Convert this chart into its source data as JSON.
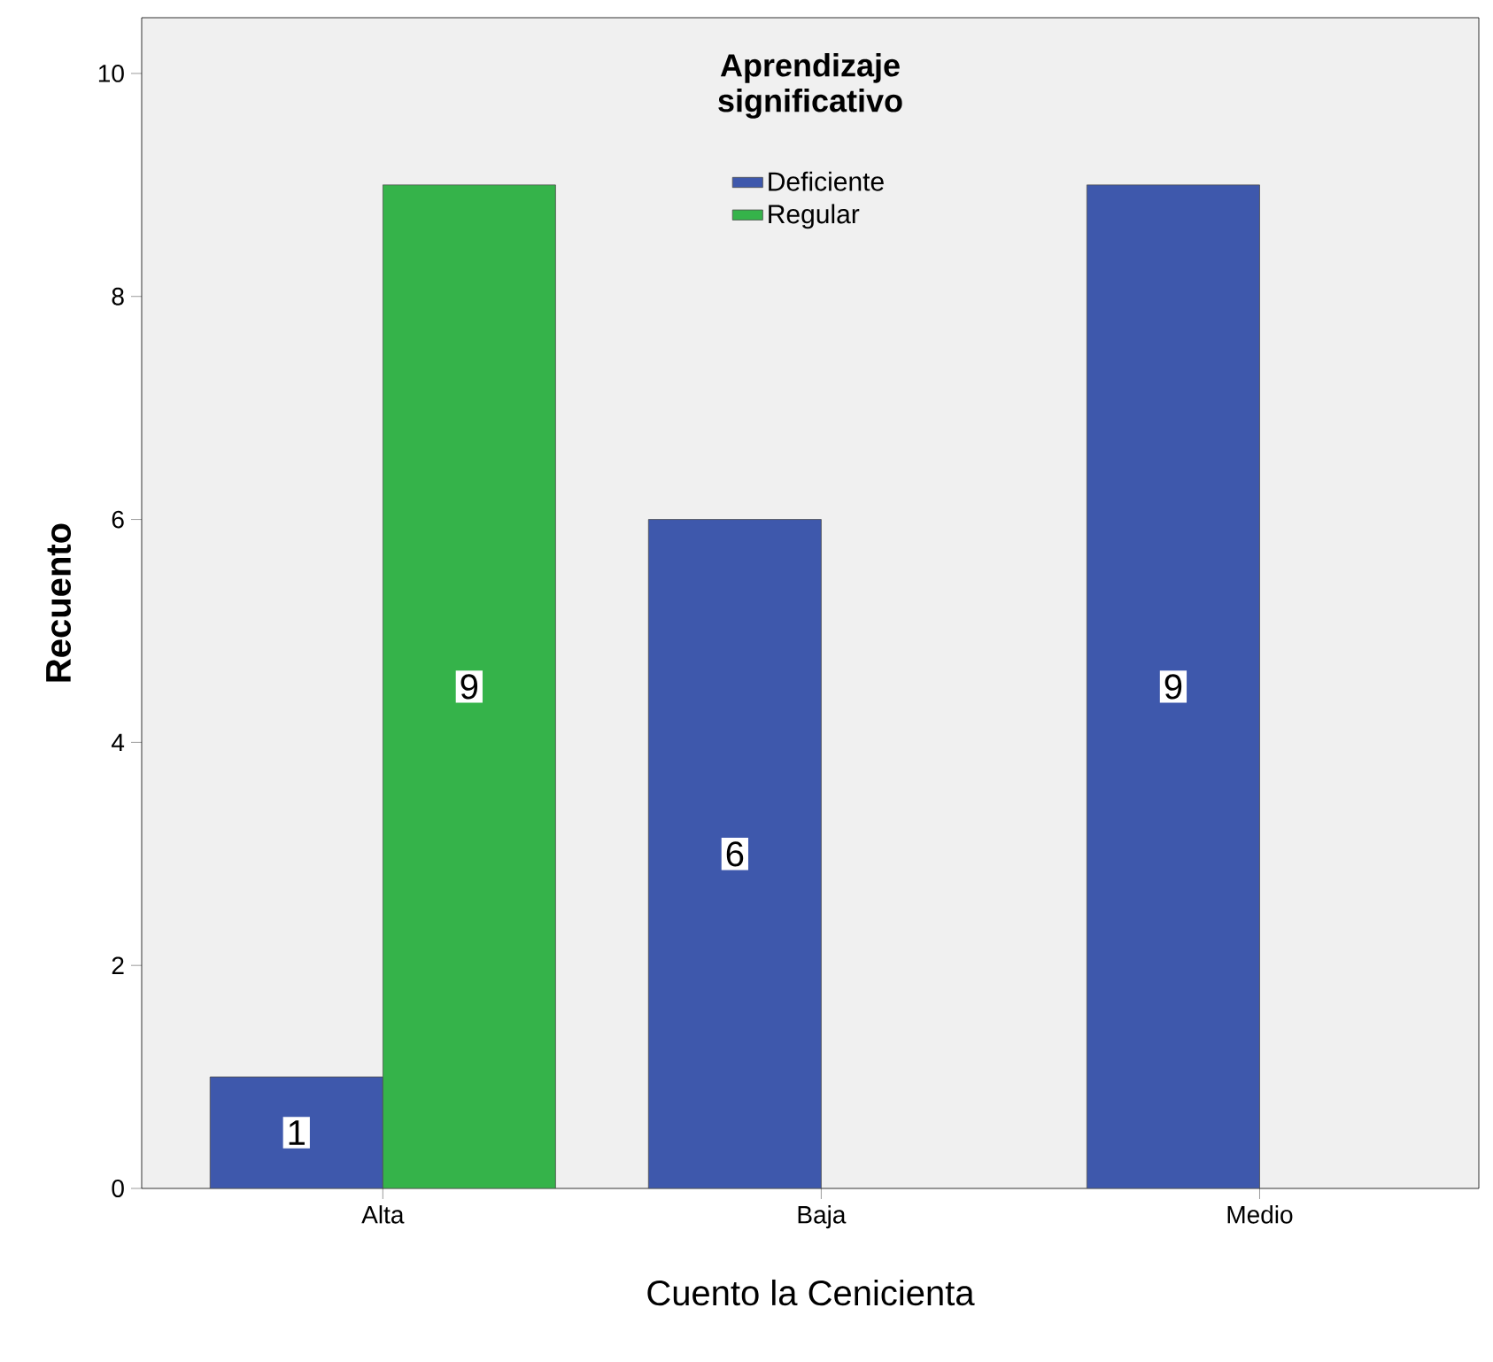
{
  "chart_data": {
    "type": "bar",
    "xlabel": "Cuento la Cenicienta",
    "ylabel": "Recuento",
    "legend_title": "Aprendizaje significativo",
    "categories": [
      "Alta",
      "Baja",
      "Medio"
    ],
    "series": [
      {
        "name": "Deficiente",
        "color": "#3e58ac",
        "values": [
          1,
          6,
          9
        ]
      },
      {
        "name": "Regular",
        "color": "#35b34a",
        "values": [
          9,
          null,
          null
        ]
      }
    ],
    "ylim": [
      0,
      10.5
    ],
    "yticks": [
      0,
      2,
      4,
      6,
      8,
      10
    ],
    "data_labels": true,
    "legend": "top",
    "grid": false
  }
}
